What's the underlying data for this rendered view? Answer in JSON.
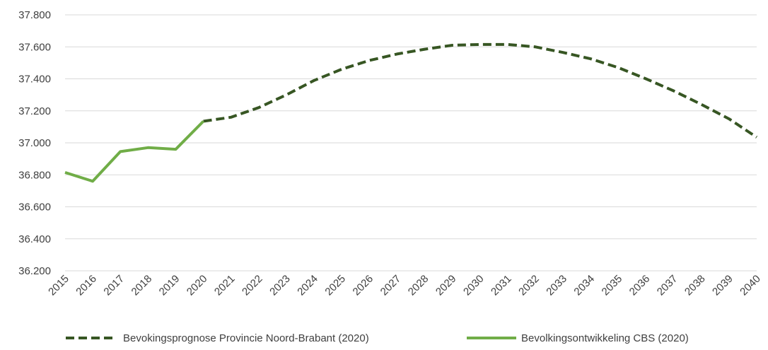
{
  "chart_data": {
    "type": "line",
    "title": "",
    "xlabel": "",
    "ylabel": "",
    "x": [
      "2015",
      "2016",
      "2017",
      "2018",
      "2019",
      "2020",
      "2021",
      "2022",
      "2023",
      "2024",
      "2025",
      "2026",
      "2027",
      "2028",
      "2029",
      "2030",
      "2031",
      "2032",
      "2033",
      "2034",
      "2035",
      "2036",
      "2037",
      "2038",
      "2039",
      "2040"
    ],
    "y_ticks": [
      "36.200",
      "36.400",
      "36.600",
      "36.800",
      "37.000",
      "37.200",
      "37.400",
      "37.600",
      "37.800"
    ],
    "ylim": [
      36200,
      37800
    ],
    "grid": true,
    "legend_position": "bottom",
    "series": [
      {
        "name": "Bevokingsprognose Provincie Noord-Brabant (2020)",
        "style": "dashed",
        "color": "#375623",
        "x": [
          "2020",
          "2021",
          "2022",
          "2023",
          "2024",
          "2025",
          "2026",
          "2027",
          "2028",
          "2029",
          "2030",
          "2031",
          "2032",
          "2033",
          "2034",
          "2035",
          "2036",
          "2037",
          "2038",
          "2039",
          "2040"
        ],
        "values": [
          37135,
          37160,
          37220,
          37300,
          37390,
          37460,
          37515,
          37555,
          37585,
          37610,
          37615,
          37615,
          37600,
          37565,
          37525,
          37470,
          37400,
          37325,
          37240,
          37150,
          37035
        ]
      },
      {
        "name": "Bevolkingsontwikkeling CBS (2020)",
        "style": "solid",
        "color": "#70ad47",
        "x": [
          "2015",
          "2016",
          "2017",
          "2018",
          "2019",
          "2020"
        ],
        "values": [
          36815,
          36760,
          36945,
          36970,
          36960,
          37135
        ]
      }
    ]
  }
}
